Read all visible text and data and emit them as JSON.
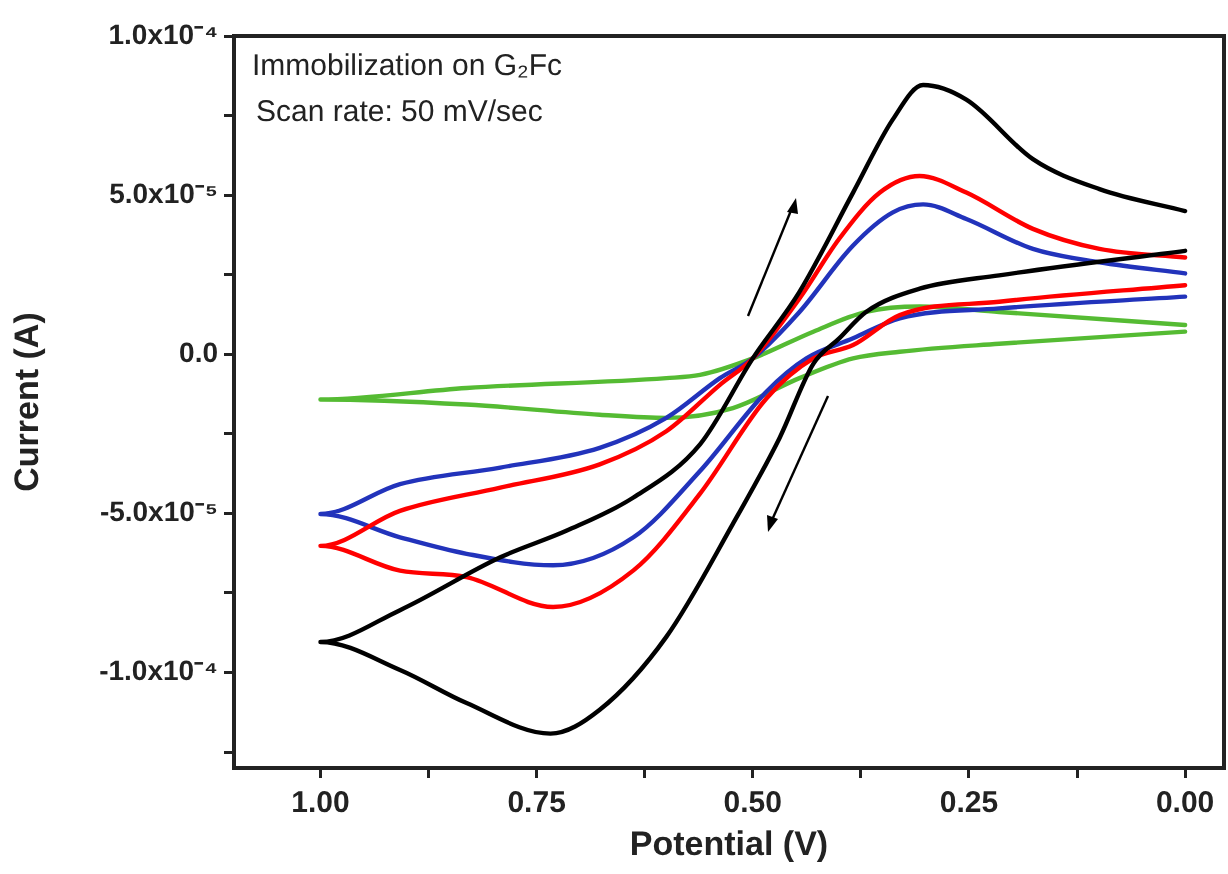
{
  "chart_data": {
    "type": "line",
    "xlabel": "Potential (V)",
    "ylabel": "Current (A)",
    "annotations": [
      "Immobilization on G₂Fc",
      "Scan rate: 50 mV/sec"
    ],
    "xlim": [
      1.1,
      -0.045
    ],
    "ylim": [
      -0.00013,
      0.0001
    ],
    "xticks": [
      {
        "value": 1,
        "label": "1.00"
      },
      {
        "value": 0.875,
        "label": null
      },
      {
        "value": 0.75,
        "label": "0.75"
      },
      {
        "value": 0.625,
        "label": null
      },
      {
        "value": 0.5,
        "label": "0.50"
      },
      {
        "value": 0.375,
        "label": null
      },
      {
        "value": 0.25,
        "label": "0.25"
      },
      {
        "value": 0.125,
        "label": null
      },
      {
        "value": 0,
        "label": "0.00"
      }
    ],
    "yticks": [
      {
        "value": -0.000125,
        "label": null
      },
      {
        "value": -0.0001,
        "label": "-1.0x10⁻⁴"
      },
      {
        "value": -7.5e-05,
        "label": null
      },
      {
        "value": -5e-05,
        "label": "-5.0x10⁻⁵"
      },
      {
        "value": -2.5e-05,
        "label": null
      },
      {
        "value": 0,
        "label": "0.0"
      },
      {
        "value": 2.5e-05,
        "label": null
      },
      {
        "value": 5e-05,
        "label": "5.0x10⁻⁵"
      },
      {
        "value": 7.5e-05,
        "label": null
      },
      {
        "value": 0.0001,
        "label": "1.0x10⁻⁴"
      }
    ],
    "grid": false,
    "legend": false,
    "marker": "none",
    "line_style": "solid",
    "series": [
      {
        "color": "#000000",
        "x": [
          0,
          0.215,
          0.307,
          0.369,
          0.4,
          0.43,
          0.469,
          0.523,
          0.6,
          0.677,
          0.734,
          0.831,
          0.908,
          1.0,
          0.908,
          0.792,
          0.715,
          0.638,
          0.561,
          0.5,
          0.446,
          0.384,
          0.338,
          0.303,
          0.253,
          0.176,
          0.099,
          0
        ],
        "values": [
          3.25e-05,
          2.48e-05,
          2.06e-05,
          1.33e-05,
          5e-06,
          -3e-06,
          -2.63e-05,
          -5.33e-05,
          -8.88e-05,
          -0.0001117,
          -0.0001192,
          -0.0001096,
          -9.92e-05,
          -9.04e-05,
          -8.04e-05,
          -6.38e-05,
          -5.54e-05,
          -4.5e-05,
          -2.83e-05,
          -1.3e-06,
          1.96e-05,
          5.08e-05,
          7.38e-05,
          8.46e-05,
          8e-05,
          6.13e-05,
          5.19e-05,
          4.5e-05
        ]
      },
      {
        "color": "#ff0000",
        "x": [
          0,
          0.215,
          0.33,
          0.384,
          0.43,
          0.484,
          0.561,
          0.638,
          0.731,
          0.831,
          0.908,
          1.0,
          0.908,
          0.792,
          0.677,
          0.6,
          0.538,
          0.5,
          0.446,
          0.4,
          0.353,
          0.307,
          0.253,
          0.176,
          0.099,
          0
        ],
        "values": [
          2.17e-05,
          1.65e-05,
          1.23e-05,
          2.9e-06,
          -1.3e-06,
          -1.38e-05,
          -4.38e-05,
          -6.79e-05,
          -7.94e-05,
          -7e-05,
          -6.8e-05,
          -6.02e-05,
          -4.92e-05,
          -4.19e-05,
          -3.46e-05,
          -2.42e-05,
          -9.6e-06,
          -1.3e-06,
          1.75e-05,
          3.63e-05,
          5.08e-05,
          5.6e-05,
          5.08e-05,
          3.94e-05,
          3.31e-05,
          3.04e-05
        ]
      },
      {
        "color": "#2233bb",
        "x": [
          0,
          0.215,
          0.33,
          0.384,
          0.438,
          0.484,
          0.561,
          0.638,
          0.731,
          0.831,
          0.908,
          1.0,
          0.908,
          0.792,
          0.677,
          0.6,
          0.538,
          0.5,
          0.446,
          0.384,
          0.338,
          0.303,
          0.253,
          0.176,
          0.099,
          0
        ],
        "values": [
          1.81e-05,
          1.44e-05,
          1.13e-05,
          5e-06,
          -1.3e-06,
          -1.17e-05,
          -3.67e-05,
          -5.75e-05,
          -6.63e-05,
          -6.27e-05,
          -5.75e-05,
          -5.02e-05,
          -4.08e-05,
          -3.56e-05,
          -2.94e-05,
          -2e-05,
          -7.5e-06,
          -1.3e-06,
          1.33e-05,
          3.42e-05,
          4.46e-05,
          4.71e-05,
          4.25e-05,
          3.31e-05,
          2.89e-05,
          2.54e-05
        ]
      },
      {
        "color": "#55bb33",
        "x": [
          0,
          0.215,
          0.33,
          0.384,
          0.446,
          0.523,
          0.6,
          0.677,
          0.831,
          1.0,
          0.831,
          0.6,
          0.561,
          0.5,
          0.43,
          0.369,
          0.307,
          0.215,
          0
        ],
        "values": [
          7.1e-06,
          3.3e-06,
          8e-07,
          -1.3e-06,
          -7.5e-06,
          -1.69e-05,
          -2e-05,
          -1.9e-05,
          -1.58e-05,
          -1.42e-05,
          -1.06e-05,
          -7.5e-06,
          -6.5e-06,
          -1.3e-06,
          7.1e-06,
          1.33e-05,
          1.5e-05,
          1.33e-05,
          9.2e-06
        ]
      }
    ]
  }
}
